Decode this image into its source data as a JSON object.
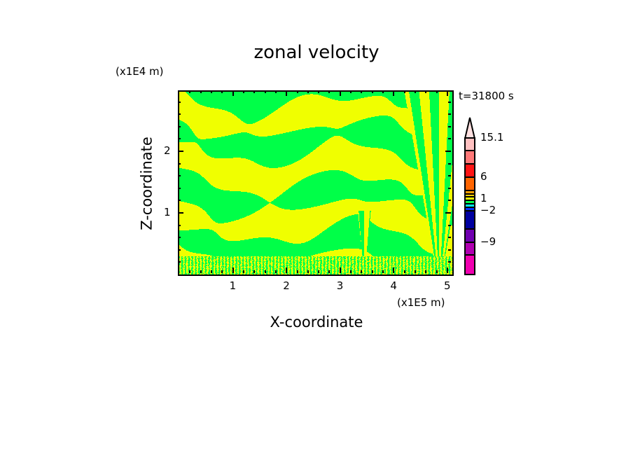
{
  "chart_data": {
    "type": "heatmap",
    "title": "zonal velocity",
    "xlabel": "X-coordinate",
    "ylabel": "Z-coordinate",
    "x_unit": "(x1E5 m)",
    "y_unit": "(x1E4 m)",
    "time_label": "t=31800 s",
    "xlim": [
      0,
      5.1
    ],
    "ylim": [
      0,
      3
    ],
    "xticks": [
      "1",
      "2",
      "3",
      "4",
      "5"
    ],
    "xtick_values": [
      1,
      2,
      3,
      4,
      5
    ],
    "yticks": [
      "1",
      "2"
    ],
    "ytick_values": [
      1,
      2
    ],
    "field_colors": {
      "low": "#00ff48",
      "high": "#f0ff00"
    },
    "colorbar": {
      "labels": [
        "15.1",
        "6",
        "1",
        "-2",
        "-9"
      ],
      "label_values": [
        15.1,
        6,
        1,
        -2,
        -9
      ],
      "extend": "max",
      "colors": [
        "#ffe0e0",
        "#ffc0c0",
        "#ff7878",
        "#ff1414",
        "#ff6400",
        "#ffa000",
        "#ffd000",
        "#f0ff00",
        "#00ff48",
        "#00f0f0",
        "#0032ff",
        "#0000a0",
        "#7000b0",
        "#b000b0",
        "#f000b0"
      ]
    }
  }
}
